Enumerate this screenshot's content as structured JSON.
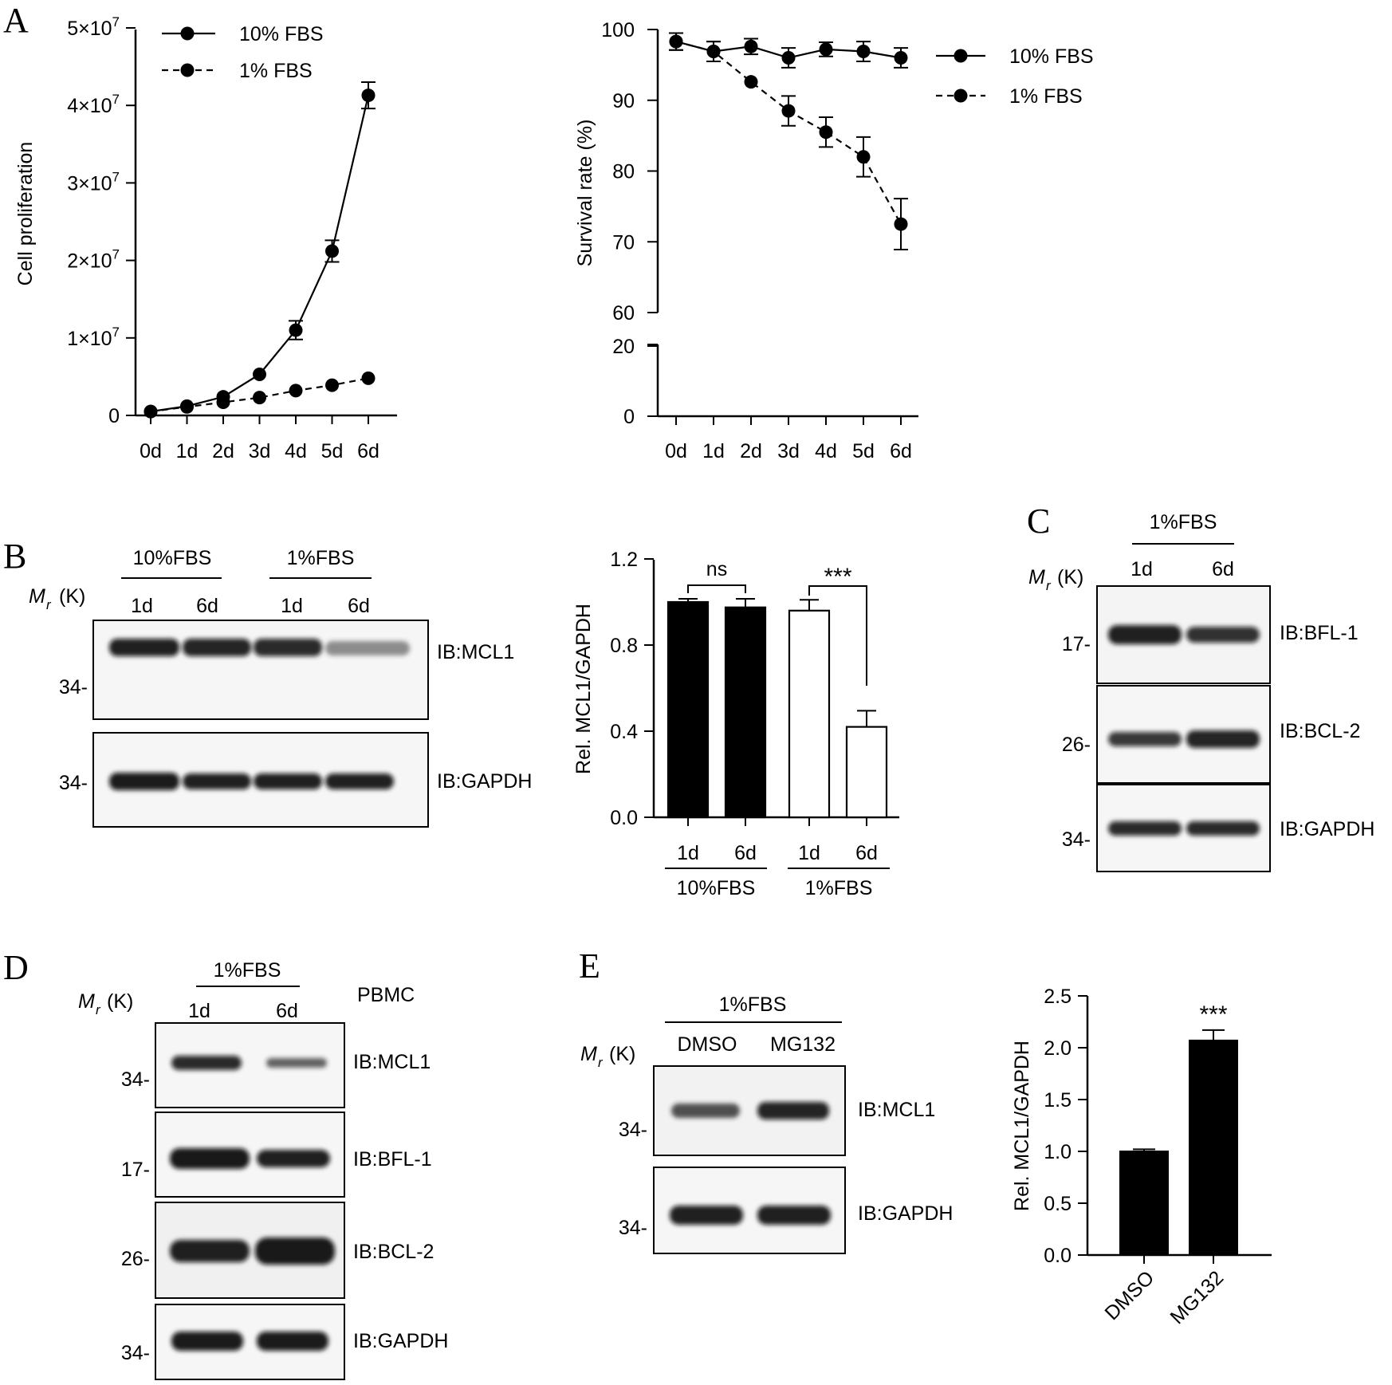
{
  "panels": {
    "A": "A",
    "B": "B",
    "C": "C",
    "D": "D",
    "E": "E"
  },
  "mr_label": {
    "M": "M",
    "r": "r",
    "unit": "(K)"
  },
  "charts": {
    "prolif": {
      "ylabel": "Cell proliferation",
      "yticks": [
        "0",
        "1×10^7",
        "2×10^7",
        "3×10^7",
        "4×10^7",
        "5×10^7"
      ],
      "xticks": [
        "0d",
        "1d",
        "2d",
        "3d",
        "4d",
        "5d",
        "6d"
      ],
      "legend": [
        "10% FBS",
        "1% FBS"
      ]
    },
    "survival": {
      "ylabel": "Survival rate (%)",
      "yticks_upper": [
        "60",
        "70",
        "80",
        "90",
        "100"
      ],
      "yticks_lower": [
        "0",
        "20"
      ],
      "xticks": [
        "0d",
        "1d",
        "2d",
        "3d",
        "4d",
        "5d",
        "6d"
      ],
      "legend": [
        "10% FBS",
        "1% FBS"
      ]
    },
    "mcl1_b": {
      "ylabel": "Rel. MCL1/GAPDH",
      "yticks": [
        "0.0",
        "0.4",
        "0.8",
        "1.2"
      ],
      "xticks": [
        "1d",
        "6d",
        "1d",
        "6d"
      ],
      "groups": [
        "10%FBS",
        "1%FBS"
      ],
      "sig": [
        "ns",
        "***"
      ]
    },
    "mcl1_e": {
      "ylabel": "Rel. MCL1/GAPDH",
      "yticks": [
        "0.0",
        "0.5",
        "1.0",
        "1.5",
        "2.0",
        "2.5"
      ],
      "xticks": [
        "DMSO",
        "MG132"
      ],
      "sig": "***"
    }
  },
  "blots": {
    "B": {
      "groups": [
        "10%FBS",
        "1%FBS"
      ],
      "lanes": [
        "1d",
        "6d",
        "1d",
        "6d"
      ],
      "rows": [
        {
          "marker": "34-",
          "label": "IB:MCL1"
        },
        {
          "marker": "34-",
          "label": "IB:GAPDH"
        }
      ]
    },
    "C": {
      "group": "1%FBS",
      "lanes": [
        "1d",
        "6d"
      ],
      "rows": [
        {
          "marker": "17-",
          "label": "IB:BFL-1"
        },
        {
          "marker": "26-",
          "label": "IB:BCL-2"
        },
        {
          "marker": "34-",
          "label": "IB:GAPDH"
        }
      ]
    },
    "D": {
      "group": "1%FBS",
      "lanes": [
        "1d",
        "6d"
      ],
      "sample": "PBMC",
      "rows": [
        {
          "marker": "34-",
          "label": "IB:MCL1"
        },
        {
          "marker": "17-",
          "label": "IB:BFL-1"
        },
        {
          "marker": "26-",
          "label": "IB:BCL-2"
        },
        {
          "marker": "34-",
          "label": "IB:GAPDH"
        }
      ]
    },
    "E": {
      "group": "1%FBS",
      "lanes": [
        "DMSO",
        "MG132"
      ],
      "rows": [
        {
          "marker": "34-",
          "label": "IB:MCL1"
        },
        {
          "marker": "34-",
          "label": "IB:GAPDH"
        }
      ]
    }
  },
  "chart_data": [
    {
      "type": "line",
      "ylabel": "Cell proliferation",
      "x": [
        "0d",
        "1d",
        "2d",
        "3d",
        "4d",
        "5d",
        "6d"
      ],
      "ylim": [
        0,
        50000000
      ],
      "legend_position": "top-right",
      "series": [
        {
          "name": "10% FBS",
          "style": "solid",
          "values": [
            500000,
            1200000,
            2400000,
            5300000,
            11000000,
            21200000,
            41300000
          ],
          "errors": [
            0,
            0,
            0,
            0,
            1200000,
            1400000,
            1700000
          ]
        },
        {
          "name": "1% FBS",
          "style": "dashed",
          "values": [
            500000,
            1100000,
            1700000,
            2300000,
            3200000,
            3900000,
            4800000
          ],
          "errors": [
            0,
            0,
            0,
            0,
            0,
            0,
            0
          ]
        }
      ]
    },
    {
      "type": "line",
      "ylabel": "Survival rate (%)",
      "x": [
        "0d",
        "1d",
        "2d",
        "3d",
        "4d",
        "5d",
        "6d"
      ],
      "ylim": [
        0,
        100
      ],
      "axis_break": [
        20,
        60
      ],
      "legend_position": "top-right",
      "series": [
        {
          "name": "10% FBS",
          "style": "solid",
          "values": [
            98.3,
            96.9,
            97.6,
            96.0,
            97.2,
            96.9,
            96.0
          ],
          "errors": [
            1.2,
            1.4,
            1.1,
            1.4,
            1.0,
            1.4,
            1.4
          ]
        },
        {
          "name": "1% FBS",
          "style": "dashed",
          "values": [
            98.3,
            96.9,
            92.6,
            88.5,
            85.5,
            82.0,
            72.5
          ],
          "errors": [
            1.2,
            1.4,
            0.3,
            2.1,
            2.1,
            2.8,
            3.6
          ]
        }
      ]
    },
    {
      "type": "bar",
      "ylabel": "Rel. MCL1/GAPDH",
      "categories": [
        "1d",
        "6d",
        "1d",
        "6d"
      ],
      "groups": [
        "10%FBS",
        "10%FBS",
        "1%FBS",
        "1%FBS"
      ],
      "values": [
        1.0,
        0.975,
        0.96,
        0.42
      ],
      "errors": [
        0.015,
        0.04,
        0.05,
        0.075
      ],
      "fill": [
        "#000000",
        "#000000",
        "#ffffff",
        "#ffffff"
      ],
      "ylim": [
        0,
        1.2
      ],
      "significance": [
        {
          "pair": [
            0,
            1
          ],
          "label": "ns"
        },
        {
          "pair": [
            2,
            3
          ],
          "label": "***"
        }
      ]
    },
    {
      "type": "bar",
      "ylabel": "Rel. MCL1/GAPDH",
      "categories": [
        "DMSO",
        "MG132"
      ],
      "values": [
        1.0,
        2.07
      ],
      "errors": [
        0.02,
        0.1
      ],
      "fill": [
        "#000000",
        "#000000"
      ],
      "ylim": [
        0,
        2.5
      ],
      "significance": [
        {
          "bar": 1,
          "label": "***"
        }
      ]
    }
  ]
}
